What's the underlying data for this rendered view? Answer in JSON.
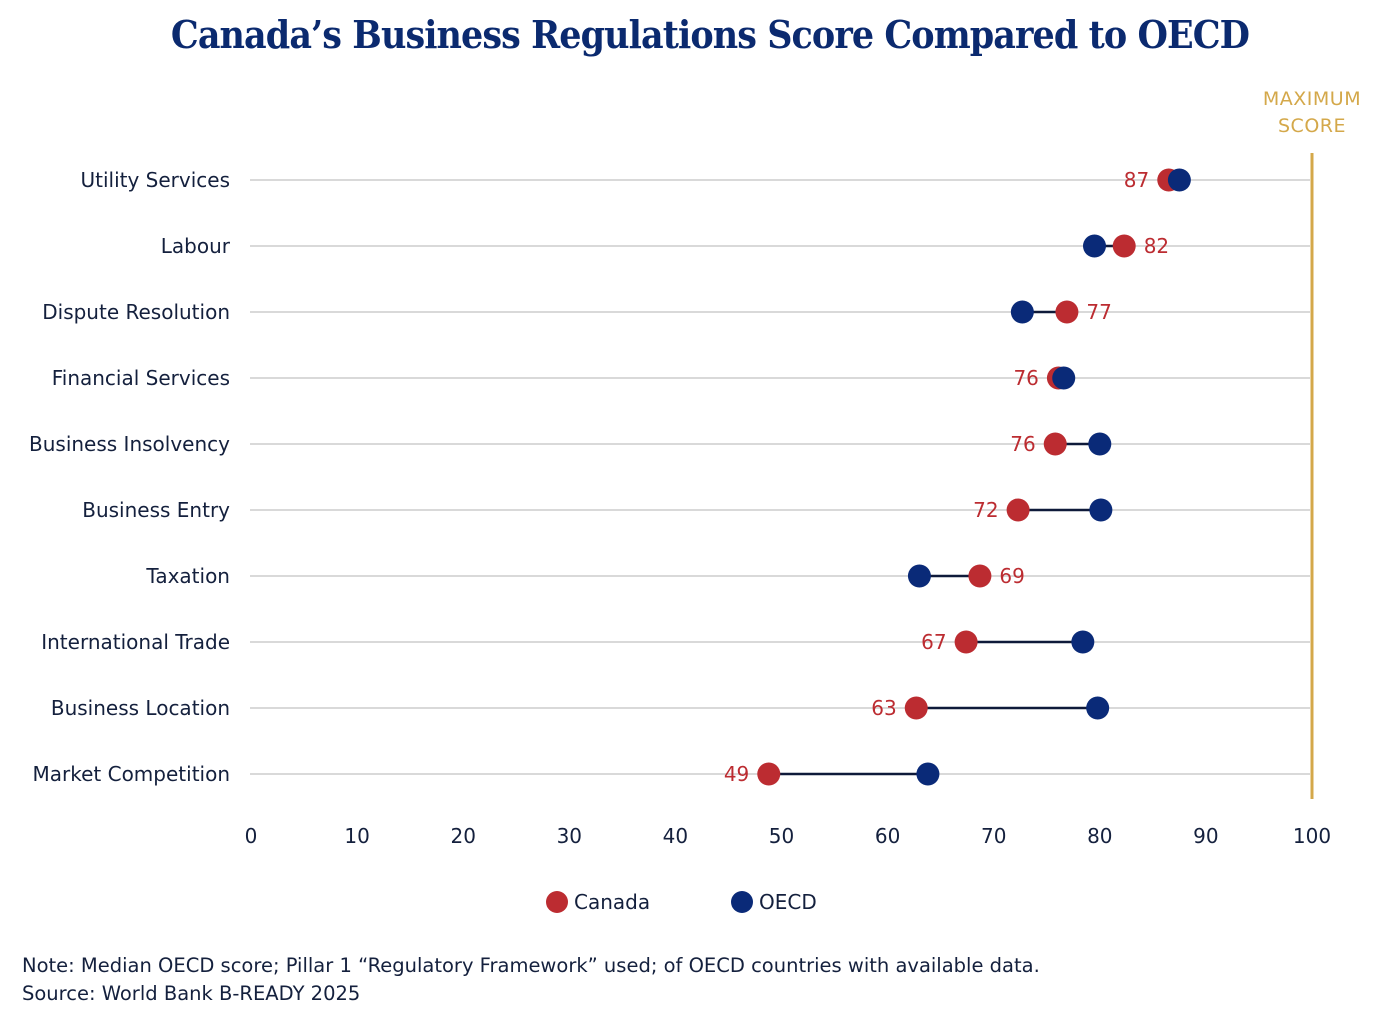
{
  "chart_data": {
    "type": "dumbbell",
    "title": "Canada’s Business Regulations Score Compared to OECD",
    "xlabel": "",
    "ylabel": "",
    "xlim": [
      0,
      100
    ],
    "x_ticks": [
      "0",
      "10",
      "20",
      "30",
      "40",
      "50",
      "60",
      "70",
      "80",
      "90",
      "100"
    ],
    "grid": true,
    "categories": [
      "Utility Services",
      "Labour",
      "Dispute Resolution",
      "Financial Services",
      "Business Insolvency",
      "Business Entry",
      "Taxation",
      "International Trade",
      "Business Location",
      "Market Competition"
    ],
    "series": [
      {
        "name": "Canada",
        "color": "#BC2C31",
        "values": [
          86.5,
          82.3,
          76.9,
          76.1,
          75.8,
          72.3,
          68.7,
          67.4,
          62.7,
          48.8
        ],
        "labels": [
          "87",
          "82",
          "77",
          "76",
          "76",
          "72",
          "69",
          "67",
          "63",
          "49"
        ]
      },
      {
        "name": "OECD",
        "color": "#0A2A78",
        "values": [
          87.5,
          79.5,
          72.7,
          76.6,
          80.0,
          80.1,
          63.0,
          78.4,
          79.8,
          63.8
        ]
      }
    ],
    "reference_line": {
      "value": 100,
      "label_lines": [
        "MAXIMUM",
        "SCORE"
      ],
      "color": "#D4A84A"
    },
    "legend": {
      "position": "bottom-center",
      "entries": [
        "Canada",
        "OECD"
      ]
    },
    "note": "Note: Median OECD score; Pillar 1 “Regulatory Framework” used; of OECD countries with available data.",
    "source": "Source: World Bank B-READY 2025"
  }
}
